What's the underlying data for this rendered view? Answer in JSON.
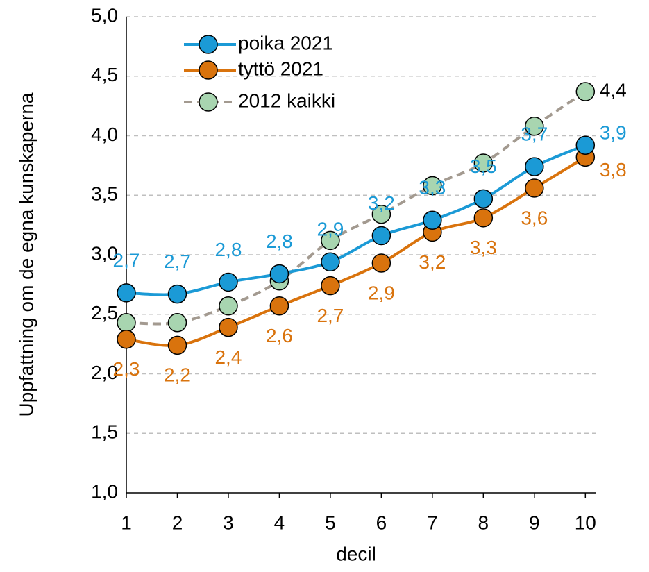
{
  "chart_data": {
    "type": "line",
    "x_label": "decil",
    "y_label": "Uppfattning om de egna kunskaperna",
    "x": [
      1,
      2,
      3,
      4,
      5,
      6,
      7,
      8,
      9,
      10
    ],
    "xlim": [
      1,
      10.2
    ],
    "xticks": [
      1,
      2,
      3,
      4,
      5,
      6,
      7,
      8,
      9,
      10
    ],
    "ylim": [
      1,
      5
    ],
    "yticks": [
      {
        "value": 1,
        "label": "1,0"
      },
      {
        "value": 1.5,
        "label": "1,5"
      },
      {
        "value": 2,
        "label": "2,0"
      },
      {
        "value": 2.5,
        "label": "2,5"
      },
      {
        "value": 3,
        "label": "3,0"
      },
      {
        "value": 3.5,
        "label": "3,5"
      },
      {
        "value": 4,
        "label": "4,0"
      },
      {
        "value": 4.5,
        "label": "4,5"
      },
      {
        "value": 5,
        "label": "5,0"
      }
    ],
    "grid": true,
    "legend": "upper left",
    "series": [
      {
        "name": "poika 2021",
        "color": "#1b9ad6",
        "dashed": false,
        "label_color": "#1b9ad6",
        "label_side": "above",
        "values": [
          2.68,
          2.67,
          2.77,
          2.84,
          2.94,
          3.16,
          3.29,
          3.47,
          3.74,
          3.92
        ],
        "value_labels": [
          "2,7",
          "2,7",
          "2,8",
          "2,8",
          "2,9",
          "3,2",
          "3,3",
          "3,5",
          "3,7",
          "3,9"
        ]
      },
      {
        "name": "tyttö 2021",
        "color": "#d9730d",
        "dashed": false,
        "label_color": "#d9730d",
        "label_side": "below",
        "values": [
          2.29,
          2.24,
          2.39,
          2.57,
          2.74,
          2.93,
          3.19,
          3.31,
          3.56,
          3.82
        ],
        "value_labels": [
          "2,3",
          "2,2",
          "2,4",
          "2,6",
          "2,7",
          "2,9",
          "3,2",
          "3,3",
          "3,6",
          "3,8"
        ]
      },
      {
        "name": "2012 kaikki",
        "color": "#a8d5b0",
        "line_color": "#a39a90",
        "dashed": true,
        "label_color": "#000000",
        "label_side": "above",
        "values": [
          2.43,
          2.43,
          2.57,
          2.78,
          3.12,
          3.34,
          3.58,
          3.77,
          4.08,
          4.37
        ],
        "value_labels": [
          null,
          null,
          null,
          null,
          null,
          null,
          null,
          null,
          null,
          "4,4"
        ]
      }
    ]
  }
}
